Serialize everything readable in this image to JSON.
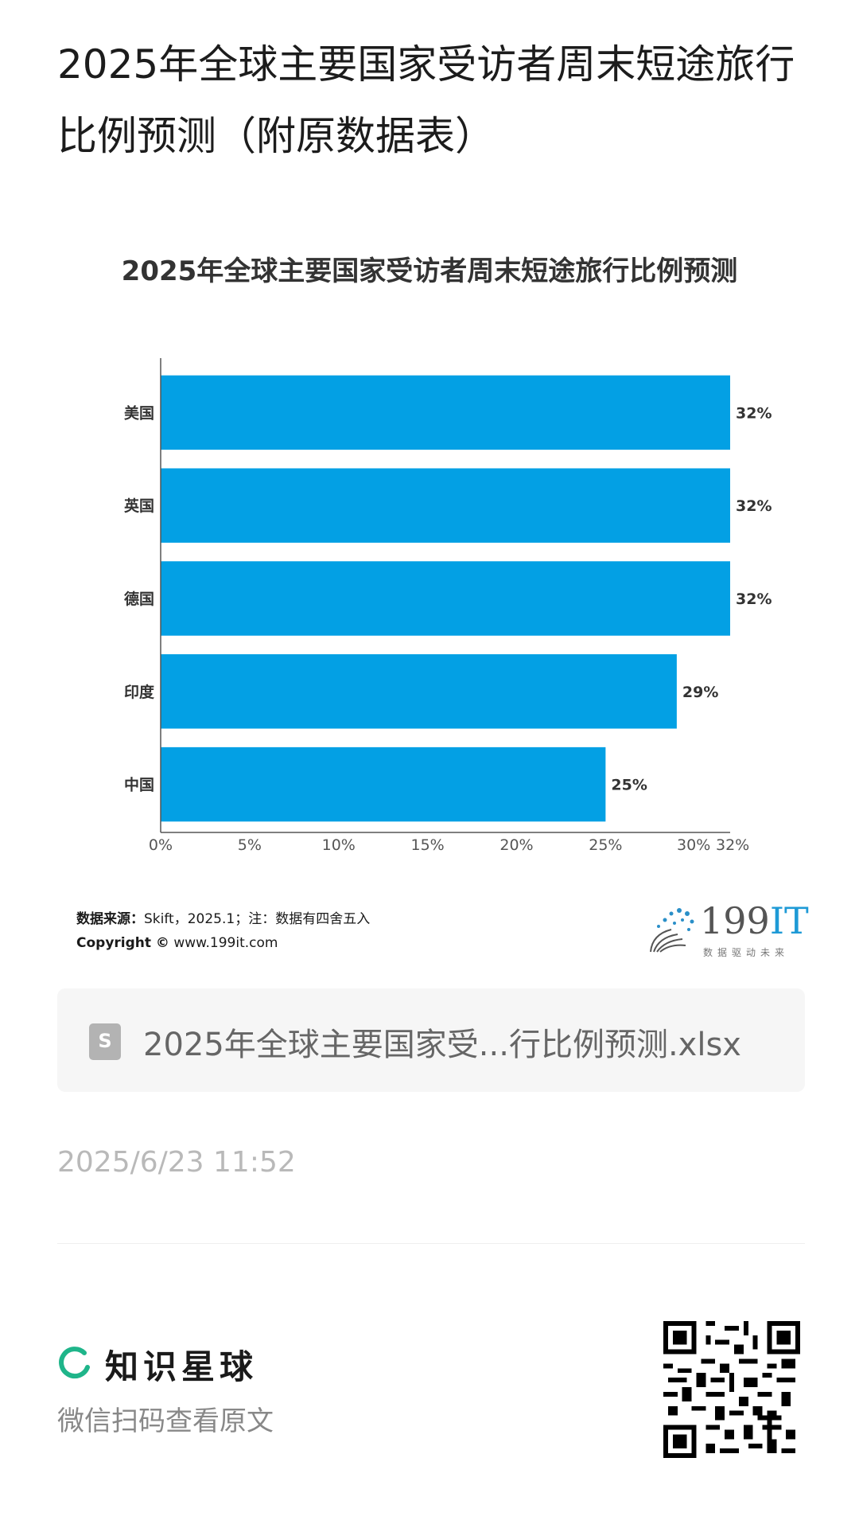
{
  "page": {
    "title": "2025年全球主要国家受访者周末短途旅行比例预测（附原数据表）"
  },
  "chart_data": {
    "type": "bar",
    "orientation": "horizontal",
    "title": "2025年全球主要国家受访者周末短途旅行比例预测",
    "categories": [
      "美国",
      "英国",
      "德国",
      "印度",
      "中国"
    ],
    "values": [
      32,
      32,
      32,
      29,
      25
    ],
    "value_labels": [
      "32%",
      "32%",
      "32%",
      "29%",
      "25%"
    ],
    "x_ticks": [
      "0%",
      "5%",
      "10%",
      "15%",
      "20%",
      "25%",
      "30%",
      "32%"
    ],
    "x_tick_values": [
      0,
      5,
      10,
      15,
      20,
      25,
      30,
      32
    ],
    "xlim": [
      0,
      32
    ],
    "bar_color": "#03a0e4",
    "grid": false
  },
  "source": {
    "label": "数据来源：",
    "text": "Skift，2025.1；注：数据有四舍五入",
    "copyright_label": "Copyright ©",
    "copyright_text": "www.199it.com"
  },
  "logo": {
    "main": "199",
    "accent": "IT",
    "tagline": "数据驱动未来"
  },
  "file": {
    "name": "2025年全球主要国家受...行比例预测.xlsx",
    "icon": "spreadsheet-file-icon"
  },
  "timestamp": "2025/6/23 11:52",
  "footer": {
    "brand": "知识星球",
    "hint": "微信扫码查看原文",
    "brand_color": "#1fb58a"
  }
}
